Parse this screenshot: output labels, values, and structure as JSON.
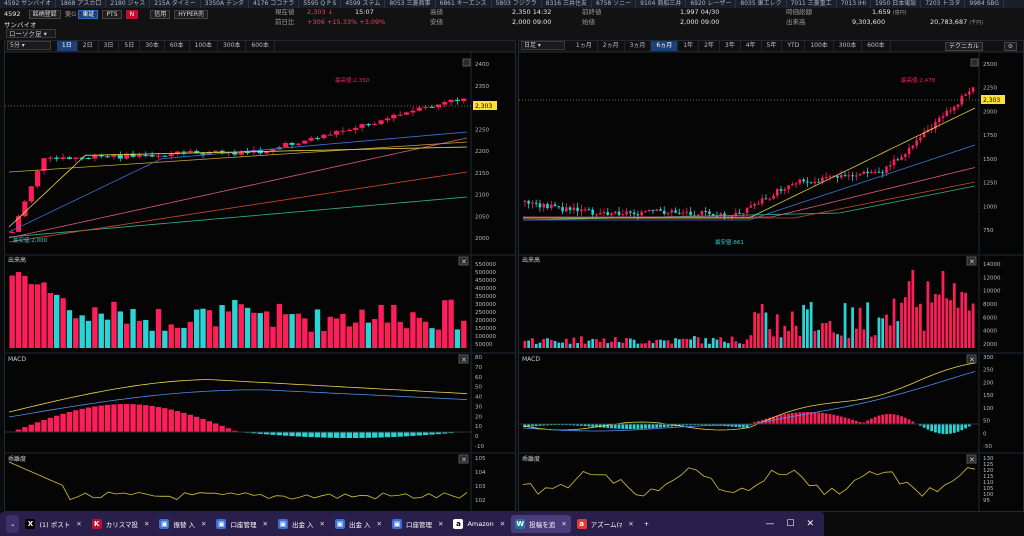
{
  "ticker": [
    "4592 サンバイオ",
    "1868 アスカ口",
    "2180 ジャス",
    "215A タイミー",
    "3350A テンダ",
    "4176 ココナラ",
    "5595 Q P S",
    "4599 ステム",
    "8053 三菱商事",
    "6861 キーエンス",
    "5803 フジクラ",
    "8316 三井住友",
    "6758 ソニー",
    "9104 商船三井",
    "6920 レーザー",
    "8035 東エレク",
    "7011 三菱重工",
    "7013 IHI",
    "1950 日本電設",
    "7203 トヨタ",
    "9984 SBG"
  ],
  "header": {
    "code": "4592",
    "watch_label": "銘柄登録",
    "market": "東G",
    "exchange_btn": "東証",
    "pts_btn": "PTS",
    "n_btn": "N",
    "credit_btn": "信用",
    "hyper_btn": "HYPER売",
    "name": "サンバイオ",
    "layout_select": "ローソク足",
    "current_label": "現在値",
    "current_value": "2,303",
    "current_arrow": "↓",
    "time": "15:07",
    "prev_label": "前日比",
    "prev_change": "+306",
    "prev_pct": "+15.33%",
    "prev_pct2": "+3.09%",
    "high_label": "高値",
    "high_value": "2,350",
    "high_time": "14:32",
    "low_label": "安値",
    "low_value": "2,000",
    "low_time": "09:00",
    "prev_close_label": "前終値",
    "prev_close_value": "1,997",
    "prev_close_date": "04/30",
    "open_label": "始値",
    "open_value": "2,000",
    "open_time": "09:00",
    "mktcap_label": "時価総額",
    "mktcap_value": "1,659",
    "mktcap_unit": "(億円)",
    "volume_label": "出来高",
    "volume_value": "9,303,600",
    "turnover_value": "20,783,687",
    "turnover_unit": "(千円)"
  },
  "left": {
    "interval_select": "5分",
    "periods": [
      "1日",
      "2日",
      "3日",
      "5日",
      "30本",
      "60本",
      "100本",
      "300本",
      "600本"
    ],
    "active_period": "1日",
    "high_annotation": "最高値:2,350",
    "low_annotation": "最安値:2,000",
    "price_tag": "2,303",
    "price_axis": [
      "2400",
      "2350",
      "2300",
      "2250",
      "2200",
      "2150",
      "2100",
      "2050",
      "2000"
    ],
    "volume_title": "出来高",
    "volume_axis": [
      "550000",
      "500000",
      "450000",
      "400000",
      "350000",
      "300000",
      "250000",
      "200000",
      "150000",
      "100000",
      "50000"
    ],
    "macd_title": "MACD",
    "macd_axis": [
      "80",
      "70",
      "60",
      "50",
      "40",
      "30",
      "20",
      "10",
      "0",
      "-10"
    ],
    "psy_title": "乖離度",
    "psy_axis": [
      "105",
      "104",
      "103",
      "102"
    ]
  },
  "right": {
    "interval_select": "日足",
    "periods": [
      "1ヵ月",
      "2ヵ月",
      "3ヵ月",
      "6ヵ月",
      "1年",
      "2年",
      "3年",
      "4年",
      "5年",
      "YTD",
      "100本",
      "300本",
      "600本"
    ],
    "active_period": "6ヵ月",
    "technical_btn": "テクニカル",
    "high_annotation": "最高値:2,478",
    "low_annotation": "最安値:661",
    "price_tag": "2,303",
    "price_axis": [
      "2500",
      "2250",
      "2000",
      "1750",
      "1500",
      "1250",
      "1000",
      "750"
    ],
    "volume_title": "出来高",
    "volume_axis": [
      "14000",
      "12000",
      "10000",
      "8000",
      "6000",
      "4000",
      "2000"
    ],
    "macd_title": "MACD",
    "macd_axis": [
      "300",
      "250",
      "200",
      "150",
      "100",
      "50",
      "0",
      "-50"
    ],
    "psy_title": "乖離度",
    "psy_axis": [
      "130",
      "125",
      "120",
      "115",
      "110",
      "105",
      "100",
      "95"
    ]
  },
  "colors": {
    "up": "#ff1e5a",
    "down": "#2ad4d4",
    "accent": "#ffe033"
  },
  "taskbar": {
    "tabs": [
      {
        "icon": "x-icon",
        "glyph": "X",
        "label": "(1) ポスト"
      },
      {
        "icon": "k-icon",
        "glyph": "K",
        "label": "カリスマ投"
      },
      {
        "icon": "tab-icon",
        "glyph": "▣",
        "label": "振替 入"
      },
      {
        "icon": "tab-icon",
        "glyph": "▣",
        "label": "口座管理"
      },
      {
        "icon": "tab-icon",
        "glyph": "▣",
        "label": "出金 入"
      },
      {
        "icon": "tab-icon",
        "glyph": "▣",
        "label": "出金 入"
      },
      {
        "icon": "tab-icon",
        "glyph": "▣",
        "label": "口座管理"
      },
      {
        "icon": "amazon-icon",
        "glyph": "a",
        "label": "Amazon"
      },
      {
        "icon": "wordpress-icon",
        "glyph": "W",
        "label": "投稿を追"
      },
      {
        "icon": "azoom-icon",
        "glyph": "a",
        "label": "アズーム(ﾏ"
      }
    ],
    "new_tab": "+",
    "minimize": "—",
    "maximize": "☐",
    "close": "✕"
  }
}
